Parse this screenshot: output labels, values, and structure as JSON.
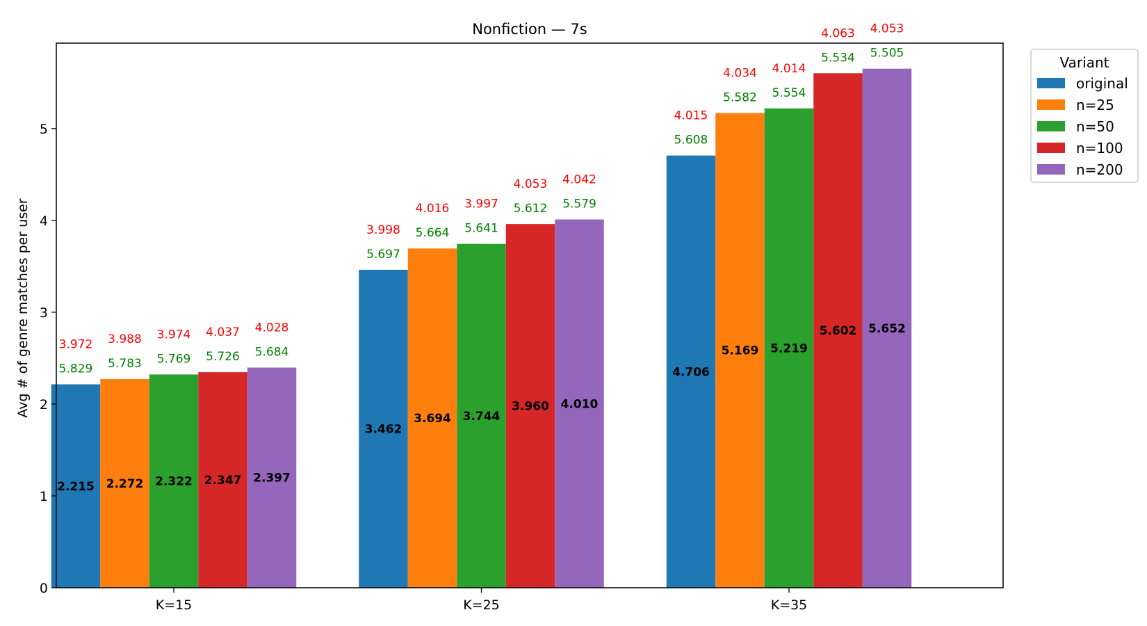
{
  "chart_data": {
    "type": "bar",
    "title": "Nonfiction — 7s",
    "xlabel": "",
    "ylabel": "Avg # of genre matches per user",
    "categories": [
      "K=15",
      "K=25",
      "K=35"
    ],
    "ylim": [
      0,
      5.93
    ],
    "yticks": [
      0,
      1,
      2,
      3,
      4,
      5
    ],
    "grid": false,
    "legend": {
      "title": "Variant",
      "position": "top-right-outside"
    },
    "series": [
      {
        "name": "original",
        "color": "#1f77b4",
        "values": [
          2.215,
          3.462,
          4.706
        ],
        "green_labels": [
          "5.829",
          "5.697",
          "5.608"
        ],
        "red_labels": [
          "3.972",
          "3.998",
          "4.015"
        ]
      },
      {
        "name": "n=25",
        "color": "#ff7f0e",
        "values": [
          2.272,
          3.694,
          5.169
        ],
        "green_labels": [
          "5.783",
          "5.664",
          "5.582"
        ],
        "red_labels": [
          "3.988",
          "4.016",
          "4.034"
        ]
      },
      {
        "name": "n=50",
        "color": "#2ca02c",
        "values": [
          2.322,
          3.744,
          5.219
        ],
        "green_labels": [
          "5.769",
          "5.641",
          "5.554"
        ],
        "red_labels": [
          "3.974",
          "3.997",
          "4.014"
        ]
      },
      {
        "name": "n=100",
        "color": "#d62728",
        "values": [
          2.347,
          3.96,
          5.602
        ],
        "green_labels": [
          "5.726",
          "5.612",
          "5.534"
        ],
        "red_labels": [
          "4.037",
          "4.053",
          "4.063"
        ]
      },
      {
        "name": "n=200",
        "color": "#9467bd",
        "values": [
          2.397,
          4.01,
          5.652
        ],
        "green_labels": [
          "5.684",
          "5.579",
          "5.505"
        ],
        "red_labels": [
          "4.028",
          "4.042",
          "4.053"
        ]
      }
    ],
    "value_labels": [
      [
        "2.215",
        "3.462",
        "4.706"
      ],
      [
        "2.272",
        "3.694",
        "5.169"
      ],
      [
        "2.322",
        "3.744",
        "5.219"
      ],
      [
        "2.347",
        "3.960",
        "5.602"
      ],
      [
        "2.397",
        "4.010",
        "5.652"
      ]
    ],
    "annotation_colors": {
      "green": "#008000",
      "red": "#ff0000"
    }
  }
}
